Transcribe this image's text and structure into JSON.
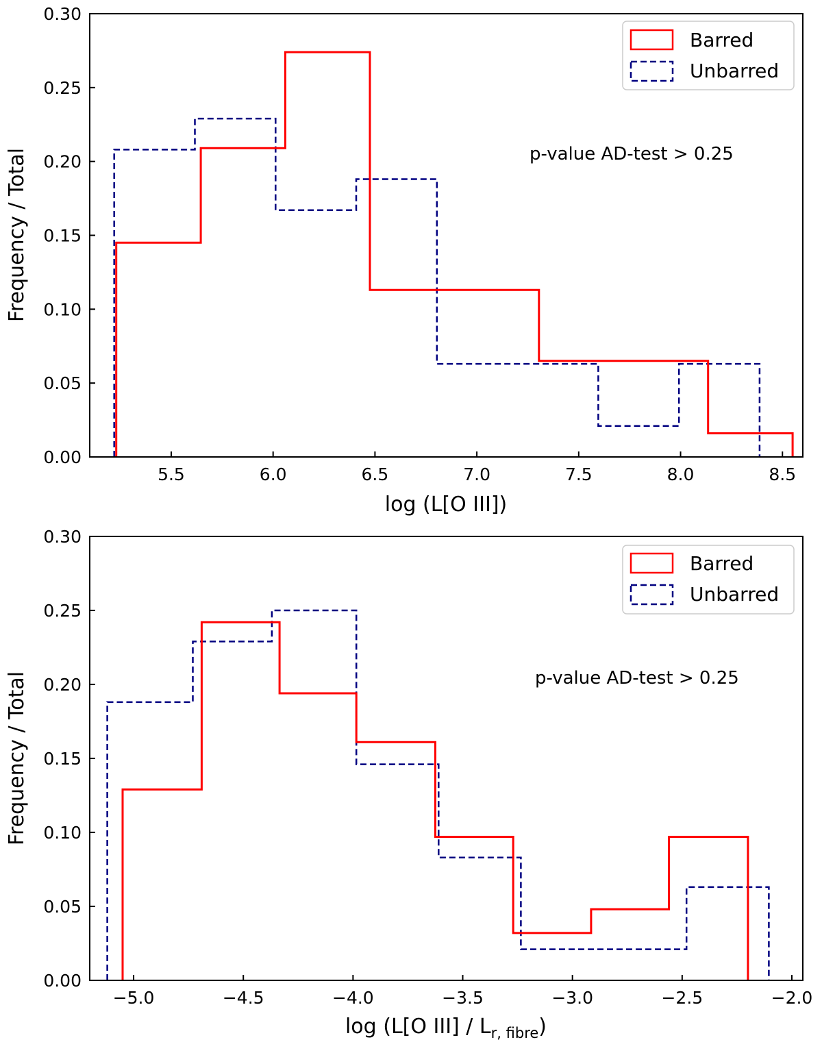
{
  "chart_data": [
    {
      "type": "histogram",
      "xlabel": "log (L[O III])",
      "ylabel": "Frequency / Total",
      "xlim": [
        5.1,
        8.6
      ],
      "ylim": [
        0.0,
        0.3
      ],
      "xticks": [
        5.5,
        6.0,
        6.5,
        7.0,
        7.5,
        8.0,
        8.5
      ],
      "xtick_labels": [
        "5.5",
        "6.0",
        "6.5",
        "7.0",
        "7.5",
        "8.0",
        "8.5"
      ],
      "yticks": [
        0.0,
        0.05,
        0.1,
        0.15,
        0.2,
        0.25,
        0.3
      ],
      "ytick_labels": [
        "0.00",
        "0.05",
        "0.10",
        "0.15",
        "0.20",
        "0.25",
        "0.30"
      ],
      "annotation": "p-value AD-test > 0.25",
      "legend_position": "top-right",
      "series": [
        {
          "name": "Barred",
          "style": "solid",
          "color": "#ff0000",
          "edges": [
            5.23,
            5.645,
            6.06,
            6.475,
            6.89,
            7.305,
            7.72,
            8.135,
            8.55
          ],
          "values": [
            0.145,
            0.209,
            0.274,
            0.113,
            0.113,
            0.065,
            0.065,
            0.016
          ]
        },
        {
          "name": "Unbarred",
          "style": "dashed",
          "color": "#000080",
          "edges": [
            5.22,
            5.616,
            6.012,
            6.408,
            6.804,
            7.2,
            7.596,
            7.992,
            8.388
          ],
          "values": [
            0.208,
            0.229,
            0.167,
            0.188,
            0.063,
            0.063,
            0.021,
            0.063
          ]
        }
      ]
    },
    {
      "type": "histogram",
      "xlabel_main": "log (L[O III] / L",
      "xlabel_sub": "r, fibre",
      "xlabel_end": ")",
      "ylabel": "Frequency / Total",
      "xlim": [
        -5.2,
        -1.95
      ],
      "ylim": [
        0.0,
        0.3
      ],
      "xticks": [
        -5.0,
        -4.5,
        -4.0,
        -3.5,
        -3.0,
        -2.5,
        -2.0
      ],
      "xtick_labels": [
        "−5.0",
        "−4.5",
        "−4.0",
        "−3.5",
        "−3.0",
        "−2.5",
        "−2.0"
      ],
      "yticks": [
        0.0,
        0.05,
        0.1,
        0.15,
        0.2,
        0.25,
        0.3
      ],
      "ytick_labels": [
        "0.00",
        "0.05",
        "0.10",
        "0.15",
        "0.20",
        "0.25",
        "0.30"
      ],
      "annotation": "p-value AD-test > 0.25",
      "legend_position": "top-right",
      "series": [
        {
          "name": "Barred",
          "style": "solid",
          "color": "#ff0000",
          "edges": [
            -5.05,
            -4.69,
            -4.335,
            -3.985,
            -3.625,
            -3.27,
            -2.915,
            -2.56,
            -2.2
          ],
          "values": [
            0.129,
            0.242,
            0.194,
            0.161,
            0.097,
            0.032,
            0.048,
            0.097
          ]
        },
        {
          "name": "Unbarred",
          "style": "dashed",
          "color": "#000080",
          "edges": [
            -5.12,
            -4.73,
            -4.37,
            -3.985,
            -3.61,
            -3.235,
            -2.86,
            -2.48,
            -2.105
          ],
          "values": [
            0.188,
            0.229,
            0.25,
            0.146,
            0.083,
            0.021,
            0.021,
            0.063
          ]
        }
      ]
    }
  ]
}
